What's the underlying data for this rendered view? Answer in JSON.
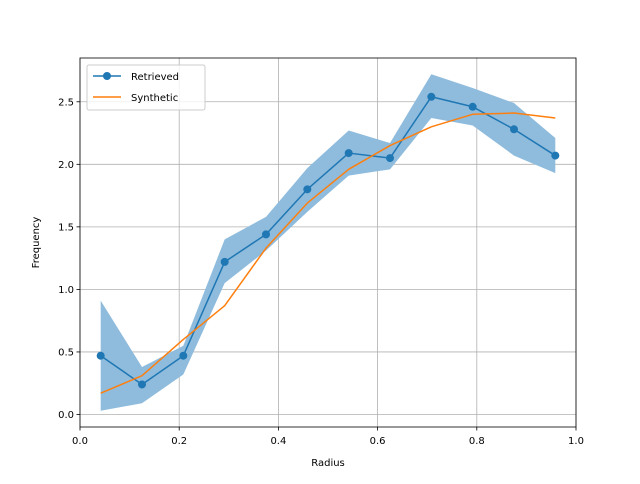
{
  "chart_data": {
    "type": "line",
    "title": "",
    "xlabel": "Radius",
    "ylabel": "Frequency",
    "xlim": [
      0.0,
      1.0
    ],
    "ylim": [
      -0.1,
      2.85
    ],
    "grid": true,
    "legend_position": "top-left",
    "x_ticks": [
      "0.0",
      "0.2",
      "0.4",
      "0.6",
      "0.8",
      "1.0"
    ],
    "y_ticks": [
      "0.0",
      "0.5",
      "1.0",
      "1.5",
      "2.0",
      "2.5"
    ],
    "series": [
      {
        "name": "Retrieved",
        "style": "line-with-markers",
        "color": "#1f77b4",
        "x": [
          0.0417,
          0.125,
          0.2083,
          0.2917,
          0.375,
          0.4583,
          0.5417,
          0.625,
          0.7083,
          0.7917,
          0.875,
          0.9583
        ],
        "y": [
          0.47,
          0.24,
          0.47,
          1.22,
          1.44,
          1.8,
          2.09,
          2.05,
          2.54,
          2.46,
          2.28,
          2.07
        ],
        "band_upper": [
          0.91,
          0.38,
          0.55,
          1.4,
          1.58,
          1.97,
          2.27,
          2.17,
          2.72,
          2.61,
          2.49,
          2.21
        ],
        "band_lower": [
          0.03,
          0.09,
          0.32,
          1.05,
          1.31,
          1.62,
          1.91,
          1.96,
          2.37,
          2.31,
          2.07,
          1.93
        ],
        "band_color": "#8fbcdd"
      },
      {
        "name": "Synthetic",
        "style": "line",
        "color": "#ff7f0e",
        "x": [
          0.0417,
          0.125,
          0.2083,
          0.2917,
          0.375,
          0.4583,
          0.5417,
          0.625,
          0.7083,
          0.7917,
          0.875,
          0.9583
        ],
        "y": [
          0.17,
          0.31,
          0.6,
          0.87,
          1.33,
          1.69,
          1.96,
          2.15,
          2.3,
          2.4,
          2.41,
          2.37
        ]
      }
    ]
  }
}
